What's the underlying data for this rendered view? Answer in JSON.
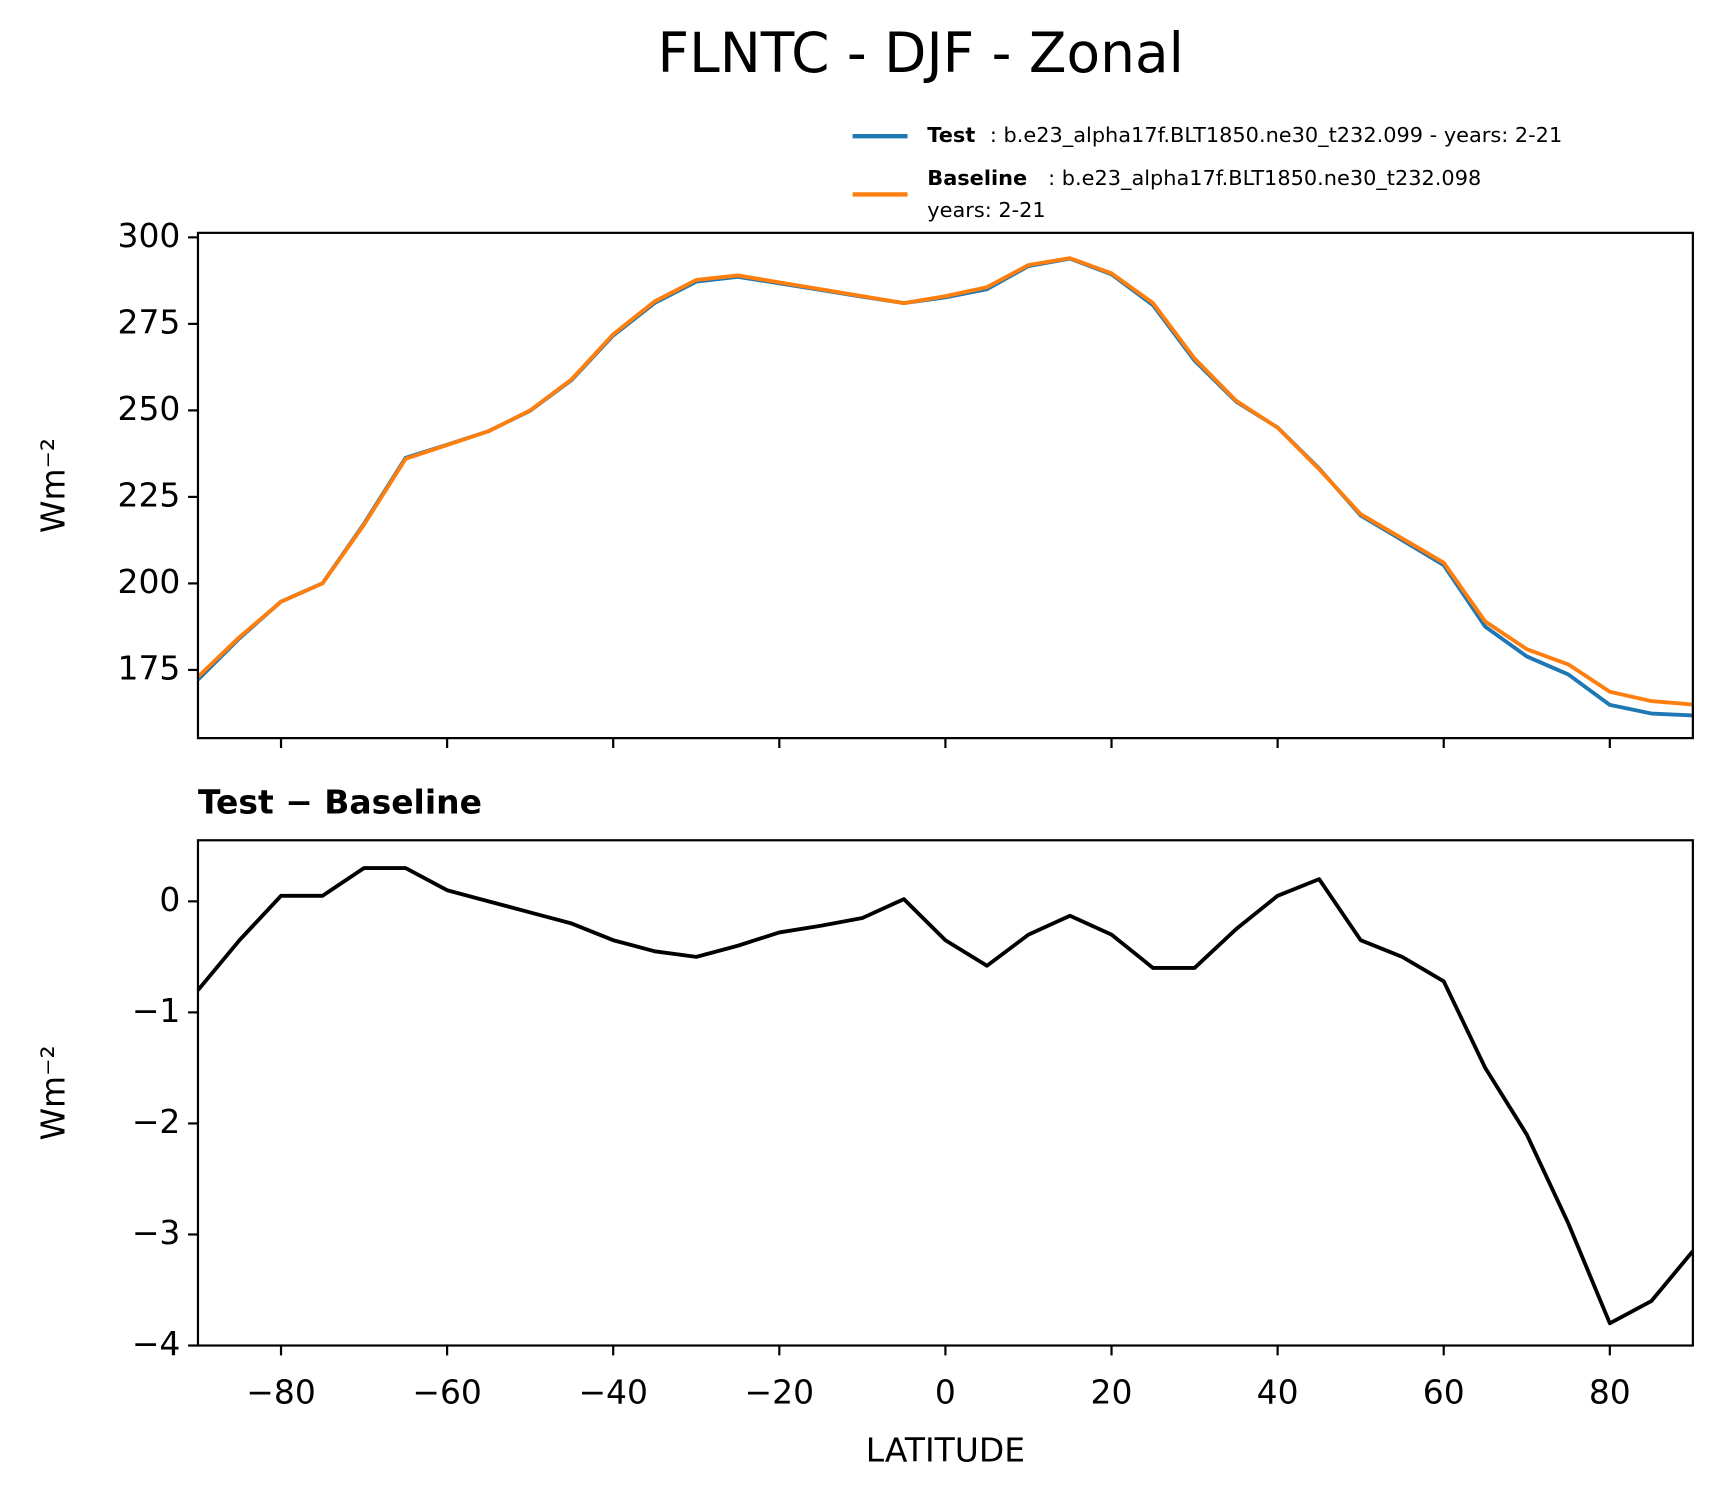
{
  "chart_data": [
    {
      "type": "line",
      "title": "FLNTC - DJF - Zonal",
      "ylabel": "Wm⁻²",
      "x": [
        -90,
        -85,
        -80,
        -75,
        -70,
        -65,
        -60,
        -55,
        -50,
        -45,
        -40,
        -35,
        -30,
        -25,
        -20,
        -15,
        -10,
        -5,
        0,
        5,
        10,
        15,
        20,
        25,
        30,
        35,
        40,
        45,
        50,
        55,
        60,
        65,
        70,
        75,
        80,
        85,
        90
      ],
      "series": [
        {
          "name": "Test",
          "label": ": b.e23_alpha17f.BLT1850.ne30_t232.099 - years: 2-21",
          "color": "#1f77b4",
          "values": [
            172.2,
            184.15,
            194.75,
            200.05,
            217.3,
            236.3,
            240.1,
            244,
            249.9,
            258.8,
            271.65,
            281.05,
            287.2,
            288.6,
            286.72,
            284.78,
            282.85,
            281.02,
            282.65,
            285.02,
            291.7,
            293.87,
            289.3,
            280.4,
            264.4,
            252.55,
            245.05,
            233.2,
            219.65,
            212.5,
            205.28,
            187.5,
            178.9,
            173.7,
            164.9,
            162.4,
            161.85
          ]
        },
        {
          "name": "Baseline",
          "label": ": b.e23_alpha17f.BLT1850.ne30_t232.098",
          "label2": "years: 2-21",
          "color": "#ff7f0e",
          "values": [
            173,
            184.5,
            194.7,
            200,
            217,
            236,
            240,
            244,
            250,
            259,
            272,
            281.5,
            287.7,
            289,
            287,
            285,
            283,
            281,
            283,
            285.6,
            292,
            294,
            289.6,
            281,
            265,
            252.8,
            245,
            233,
            220,
            213,
            206,
            189,
            181,
            176.6,
            168.7,
            166,
            165
          ]
        }
      ],
      "xlim": [
        -90,
        90
      ],
      "ylim": [
        155.3,
        301.3
      ],
      "xticks": [
        -80,
        -60,
        -40,
        -20,
        0,
        20,
        40,
        60,
        80
      ],
      "show_xticklabels": false,
      "yticks": [
        175,
        200,
        225,
        250,
        275,
        300
      ],
      "legend": "upper right outside"
    },
    {
      "type": "line",
      "title": "Test − Baseline",
      "ylabel": "Wm⁻²",
      "xlabel": "LATITUDE",
      "x": [
        -90,
        -85,
        -80,
        -75,
        -70,
        -65,
        -60,
        -55,
        -50,
        -45,
        -40,
        -35,
        -30,
        -25,
        -20,
        -15,
        -10,
        -5,
        0,
        5,
        10,
        15,
        20,
        25,
        30,
        35,
        40,
        45,
        50,
        55,
        60,
        65,
        70,
        75,
        80,
        85,
        90
      ],
      "series": [
        {
          "name": "Test − Baseline",
          "color": "#000000",
          "values": [
            -0.8,
            -0.35,
            0.05,
            0.05,
            0.3,
            0.3,
            0.1,
            0,
            -0.1,
            -0.2,
            -0.35,
            -0.45,
            -0.5,
            -0.4,
            -0.28,
            -0.22,
            -0.15,
            0.02,
            -0.35,
            -0.58,
            -0.3,
            -0.13,
            -0.3,
            -0.6,
            -0.6,
            -0.25,
            0.05,
            0.2,
            -0.35,
            -0.5,
            -0.72,
            -1.5,
            -2.1,
            -2.9,
            -3.8,
            -3.6,
            -3.15
          ]
        }
      ],
      "xlim": [
        -90,
        90
      ],
      "ylim": [
        -4,
        0.55
      ],
      "xticks": [
        {
          "value": -80,
          "label": "−80"
        },
        {
          "value": -60,
          "label": "−60"
        },
        {
          "value": -40,
          "label": "−40"
        },
        {
          "value": -20,
          "label": "−20"
        },
        0,
        20,
        40,
        60,
        80
      ],
      "show_xticklabels": true,
      "yticks": [
        {
          "value": -4,
          "label": "−4"
        },
        {
          "value": -3,
          "label": "−3"
        },
        {
          "value": -2,
          "label": "−2"
        },
        {
          "value": -1,
          "label": "−1"
        },
        0
      ]
    }
  ]
}
